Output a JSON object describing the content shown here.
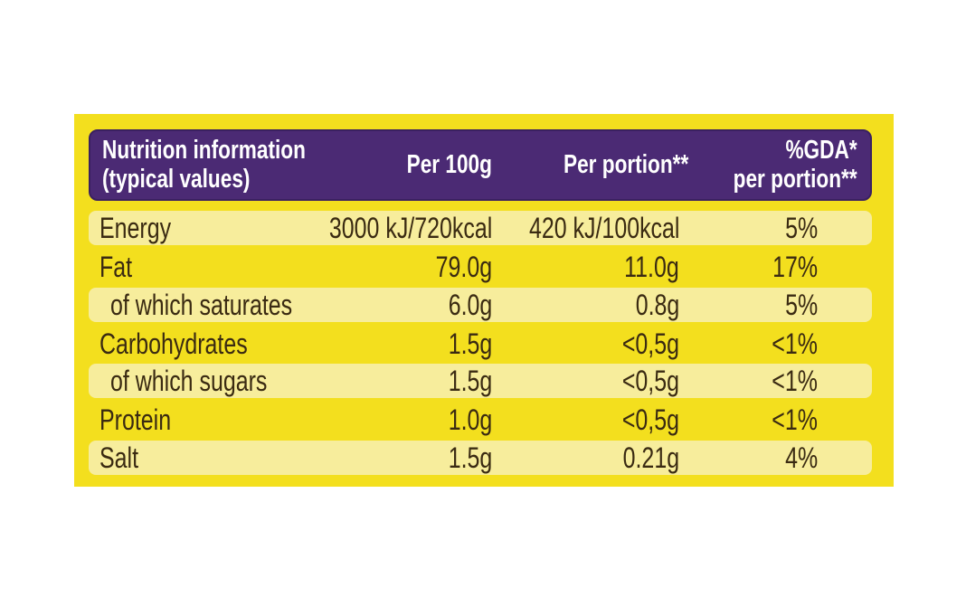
{
  "header": {
    "col1_line1": "Nutrition information",
    "col1_line2": "(typical values)",
    "col2": "Per 100g",
    "col3": "Per portion**",
    "col4_line1": "%GDA*",
    "col4_line2": "per portion**"
  },
  "rows": [
    {
      "label": "Energy",
      "per100g": "3000 kJ/720kcal",
      "perPortion": "420 kJ/100kcal",
      "gda": "5%"
    },
    {
      "label": "Fat",
      "per100g": "79.0g",
      "perPortion": "11.0g",
      "gda": "17%"
    },
    {
      "label": "of which saturates",
      "per100g": "6.0g",
      "perPortion": "0.8g",
      "gda": "5%"
    },
    {
      "label": "Carbohydrates",
      "per100g": "1.5g",
      "perPortion": "<0,5g",
      "gda": "<1%"
    },
    {
      "label": "of which sugars",
      "per100g": "1.5g",
      "perPortion": "<0,5g",
      "gda": "<1%"
    },
    {
      "label": "Protein",
      "per100g": "1.0g",
      "perPortion": "<0,5g",
      "gda": "<1%"
    },
    {
      "label": "Salt",
      "per100g": "1.5g",
      "perPortion": "0.21g",
      "gda": "4%"
    }
  ],
  "colors": {
    "panel": "#f3df1e",
    "header": "#4b2a74",
    "text": "#3a2a12",
    "stripe": "#f7ed9c"
  }
}
